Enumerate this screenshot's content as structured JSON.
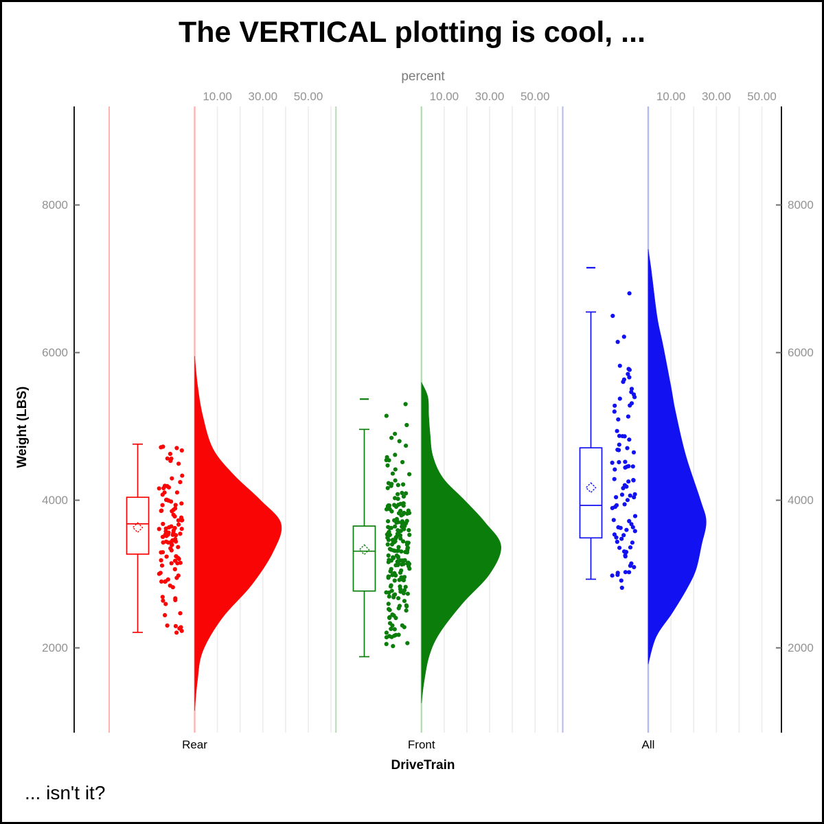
{
  "figure": {
    "title": "The VERTICAL plotting is cool, ...",
    "footer": "... isn't it?"
  },
  "colors": {
    "axis_line": "#000000",
    "gridline": "#ececec",
    "tick_text": "#929292",
    "rear": "#fa0505",
    "rear_pale": "#ffb3b3",
    "front": "#0a7d0a",
    "front_pale": "#b5dcb5",
    "all": "#1111f2",
    "all_pale": "#b3baf2"
  },
  "chart_data": {
    "type": "raincloud_halfviolin_box_jitter",
    "orientation": "vertical",
    "title": "The VERTICAL plotting is cool, ...",
    "footnote": "... isn't it?",
    "x_axis": {
      "label": "DriveTrain",
      "categories": [
        "Rear",
        "Front",
        "All"
      ]
    },
    "y_axis": {
      "label": "Weight (LBS)",
      "ticks": [
        2000,
        4000,
        6000,
        8000
      ],
      "range": [
        850,
        9300
      ],
      "sides": "both"
    },
    "top_axis": {
      "label": "percent",
      "tick_values": [
        10,
        30,
        50
      ],
      "tick_labels": [
        "10.00",
        "30.00",
        "50.00"
      ],
      "gridline_values": [
        10,
        20,
        30,
        40,
        50,
        60
      ],
      "repeated_per_group": true
    },
    "legend": "none",
    "grid": "vertical-only",
    "groups": [
      {
        "label": "Rear",
        "color": "#fa0505",
        "pale_color": "#ffb3b3",
        "box": {
          "whisker_low": 2210,
          "q1": 3270,
          "median": 3680,
          "mean": 3630,
          "q3": 4040,
          "whisker_high": 4760
        },
        "outliers": [],
        "violin_profile_weight_percent": [
          [
            1150,
            0
          ],
          [
            1550,
            1.2
          ],
          [
            1950,
            3.5
          ],
          [
            2400,
            12
          ],
          [
            2850,
            25
          ],
          [
            3300,
            34.5
          ],
          [
            3680,
            38
          ],
          [
            4000,
            29
          ],
          [
            4350,
            17
          ],
          [
            4700,
            8
          ],
          [
            5150,
            3.5
          ],
          [
            5550,
            1.3
          ],
          [
            5950,
            0
          ]
        ],
        "jitter": {
          "n": 105,
          "seed": 7,
          "min": 2200,
          "max": 4770
        }
      },
      {
        "label": "Front",
        "color": "#0a7d0a",
        "pale_color": "#b5dcb5",
        "box": {
          "whisker_low": 1880,
          "q1": 2770,
          "median": 3310,
          "mean": 3330,
          "q3": 3650,
          "whisker_high": 4960
        },
        "outliers": [
          5370
        ],
        "violin_profile_weight_percent": [
          [
            1250,
            0
          ],
          [
            1550,
            1.2
          ],
          [
            1900,
            3.5
          ],
          [
            2200,
            8
          ],
          [
            2600,
            18
          ],
          [
            3000,
            30
          ],
          [
            3380,
            35
          ],
          [
            3700,
            28
          ],
          [
            4000,
            19
          ],
          [
            4300,
            9.5
          ],
          [
            4600,
            5
          ],
          [
            4900,
            3.8
          ],
          [
            5150,
            3.2
          ],
          [
            5400,
            2.8
          ],
          [
            5600,
            0
          ]
        ],
        "jitter": {
          "n": 200,
          "seed": 13,
          "min": 1880,
          "max": 5450
        }
      },
      {
        "label": "All",
        "color": "#1111f2",
        "pale_color": "#b3baf2",
        "box": {
          "whisker_low": 2930,
          "q1": 3490,
          "median": 3930,
          "mean": 4170,
          "q3": 4710,
          "whisker_high": 6550
        },
        "outliers": [
          7150
        ],
        "violin_profile_weight_percent": [
          [
            1780,
            0
          ],
          [
            2150,
            3.5
          ],
          [
            2470,
            10.5
          ],
          [
            2800,
            17
          ],
          [
            3060,
            21
          ],
          [
            3400,
            23.5
          ],
          [
            3710,
            25.5
          ],
          [
            4000,
            23
          ],
          [
            4610,
            16.5
          ],
          [
            5200,
            12
          ],
          [
            5540,
            10
          ],
          [
            6100,
            6.5
          ],
          [
            6470,
            4
          ],
          [
            7000,
            1.8
          ],
          [
            7150,
            1.2
          ],
          [
            7400,
            0
          ]
        ],
        "jitter": {
          "n": 88,
          "seed": 21,
          "min": 2760,
          "max": 7200
        }
      }
    ]
  }
}
